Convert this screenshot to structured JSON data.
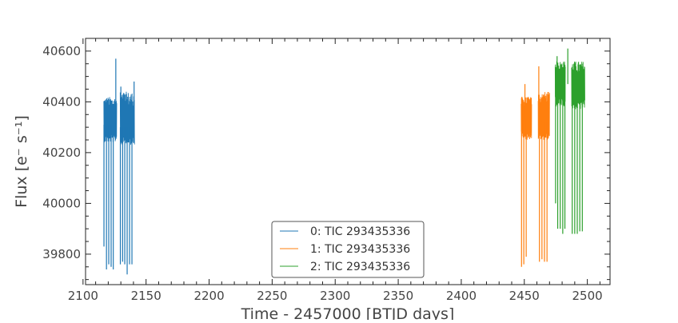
{
  "chart_data": {
    "type": "line",
    "title": "",
    "xlabel": "Time - 2457000 [BTJD days]",
    "ylabel": "Flux [e⁻ s⁻¹]",
    "xlim": [
      2102,
      2518
    ],
    "ylim": [
      39680,
      40650
    ],
    "x_ticks": [
      2100,
      2150,
      2200,
      2250,
      2300,
      2350,
      2400,
      2450,
      2500
    ],
    "x_tick_labels": [
      "2100",
      "2150",
      "2200",
      "2250",
      "2300",
      "2350",
      "2400",
      "2450",
      "2500"
    ],
    "y_ticks": [
      39800,
      40000,
      40200,
      40400,
      40600
    ],
    "y_tick_labels": [
      "39800",
      "40000",
      "40200",
      "40400",
      "40600"
    ],
    "grid": false,
    "legend_position": "lower-center",
    "series": [
      {
        "name": "0: TIC 293435336",
        "color": "#1f77b4",
        "segments": [
          {
            "x_start": 2116.5,
            "x_end": 2126.7,
            "median": 40310,
            "band_low": 40240,
            "band_high": 40420
          },
          {
            "x_start": 2129.5,
            "x_end": 2140.8,
            "median": 40300,
            "band_low": 40230,
            "band_high": 40440
          }
        ],
        "dips": [
          {
            "x": 2116.6,
            "y": 39830
          },
          {
            "x": 2118.6,
            "y": 39740
          },
          {
            "x": 2120.4,
            "y": 39760
          },
          {
            "x": 2122.3,
            "y": 39750
          },
          {
            "x": 2124.0,
            "y": 39740
          },
          {
            "x": 2129.6,
            "y": 39760
          },
          {
            "x": 2131.4,
            "y": 39770
          },
          {
            "x": 2133.1,
            "y": 39760
          },
          {
            "x": 2135.0,
            "y": 39720
          },
          {
            "x": 2136.9,
            "y": 39760
          },
          {
            "x": 2138.8,
            "y": 39760
          }
        ],
        "spikes": [
          {
            "x": 2126.0,
            "y": 40570
          },
          {
            "x": 2130.0,
            "y": 40460
          },
          {
            "x": 2140.5,
            "y": 40480
          }
        ]
      },
      {
        "name": "1: TIC 293435336",
        "color": "#ff7f0e",
        "segments": [
          {
            "x_start": 2447.5,
            "x_end": 2455.8,
            "median": 40330,
            "band_low": 40250,
            "band_high": 40420
          },
          {
            "x_start": 2461.0,
            "x_end": 2470.0,
            "median": 40320,
            "band_low": 40250,
            "band_high": 40440
          }
        ],
        "dips": [
          {
            "x": 2447.8,
            "y": 39750
          },
          {
            "x": 2449.6,
            "y": 39760
          },
          {
            "x": 2451.5,
            "y": 39790
          },
          {
            "x": 2462.0,
            "y": 39770
          },
          {
            "x": 2464.0,
            "y": 39780
          },
          {
            "x": 2466.0,
            "y": 39770
          },
          {
            "x": 2468.0,
            "y": 39770
          }
        ],
        "spikes": [
          {
            "x": 2450.5,
            "y": 40470
          },
          {
            "x": 2461.5,
            "y": 40540
          }
        ]
      },
      {
        "name": "2: TIC 293435336",
        "color": "#2ca02c",
        "segments": [
          {
            "x_start": 2474.5,
            "x_end": 2482.5,
            "median": 40470,
            "band_low": 40380,
            "band_high": 40560
          },
          {
            "x_start": 2487.5,
            "x_end": 2498.0,
            "median": 40450,
            "band_low": 40370,
            "band_high": 40560
          }
        ],
        "dips": [
          {
            "x": 2474.8,
            "y": 40000
          },
          {
            "x": 2476.5,
            "y": 39900
          },
          {
            "x": 2478.5,
            "y": 39900
          },
          {
            "x": 2480.5,
            "y": 39880
          },
          {
            "x": 2482.2,
            "y": 39900
          },
          {
            "x": 2488.0,
            "y": 39880
          },
          {
            "x": 2490.0,
            "y": 39880
          },
          {
            "x": 2492.0,
            "y": 39880
          },
          {
            "x": 2494.0,
            "y": 39890
          },
          {
            "x": 2496.0,
            "y": 39890
          }
        ],
        "spikes": [
          {
            "x": 2476.0,
            "y": 40580
          },
          {
            "x": 2484.5,
            "y": 40610
          }
        ]
      }
    ]
  }
}
